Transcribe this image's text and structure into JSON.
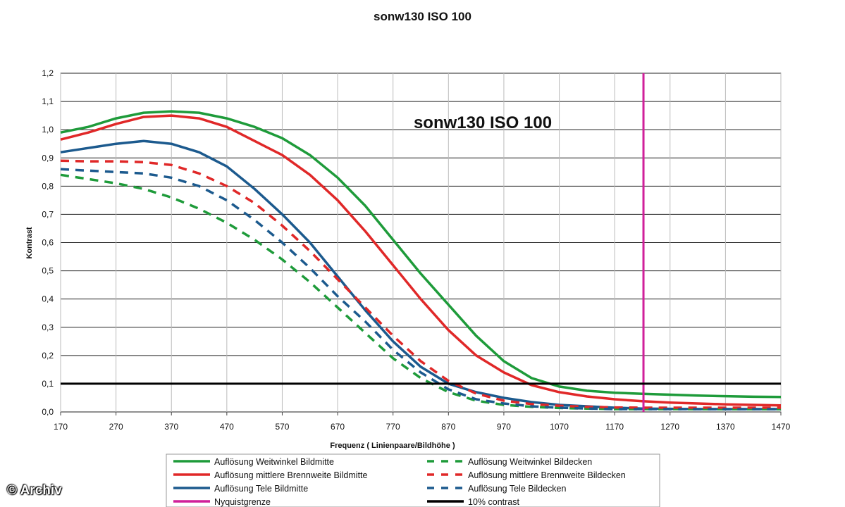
{
  "watermark": "© Archiv",
  "chart_data": {
    "type": "line",
    "title": "sonw130 ISO 100",
    "inner_title": "sonw130 ISO 100",
    "xlabel": "Frequenz ( Linienpaare/Bildhöhe )",
    "ylabel": "Kontrast",
    "xlim": [
      170,
      1470
    ],
    "ylim": [
      0,
      1.2
    ],
    "x_ticks": [
      "170",
      "270",
      "370",
      "470",
      "570",
      "670",
      "770",
      "870",
      "970",
      "1070",
      "1170",
      "1270",
      "1370",
      "1470"
    ],
    "y_ticks": [
      "0,0",
      "0,1",
      "0,2",
      "0,3",
      "0,4",
      "0,5",
      "0,6",
      "0,7",
      "0,8",
      "0,9",
      "1,0",
      "1,1",
      "1,2"
    ],
    "grid": true,
    "legend_position": "bottom",
    "series": [
      {
        "name": "Auflösung Weitwinkel Bildmitte",
        "color": "#1e9b3a",
        "style": "solid",
        "x": [
          170,
          220,
          270,
          320,
          370,
          420,
          470,
          520,
          570,
          620,
          670,
          720,
          770,
          820,
          870,
          920,
          970,
          1020,
          1070,
          1120,
          1170,
          1220,
          1270,
          1320,
          1370,
          1420,
          1470
        ],
        "y": [
          0.99,
          1.01,
          1.04,
          1.06,
          1.065,
          1.06,
          1.04,
          1.01,
          0.97,
          0.91,
          0.83,
          0.73,
          0.61,
          0.49,
          0.38,
          0.27,
          0.18,
          0.12,
          0.09,
          0.075,
          0.068,
          0.064,
          0.061,
          0.058,
          0.056,
          0.054,
          0.053
        ]
      },
      {
        "name": "Auflösung mittlere Brennweite Bildmitte",
        "color": "#e02828",
        "style": "solid",
        "x": [
          170,
          220,
          270,
          320,
          370,
          420,
          470,
          520,
          570,
          620,
          670,
          720,
          770,
          820,
          870,
          920,
          970,
          1020,
          1070,
          1120,
          1170,
          1220,
          1270,
          1320,
          1370,
          1420,
          1470
        ],
        "y": [
          0.965,
          0.99,
          1.02,
          1.045,
          1.05,
          1.04,
          1.01,
          0.96,
          0.91,
          0.84,
          0.75,
          0.64,
          0.52,
          0.4,
          0.29,
          0.2,
          0.14,
          0.095,
          0.07,
          0.055,
          0.045,
          0.038,
          0.033,
          0.03,
          0.027,
          0.025,
          0.023
        ]
      },
      {
        "name": "Auflösung Tele Bildmitte",
        "color": "#1c5a8e",
        "style": "solid",
        "x": [
          170,
          220,
          270,
          320,
          370,
          420,
          470,
          520,
          570,
          620,
          670,
          720,
          770,
          820,
          870,
          920,
          970,
          1020,
          1070,
          1120,
          1170,
          1220,
          1270,
          1320,
          1370,
          1420,
          1470
        ],
        "y": [
          0.92,
          0.935,
          0.95,
          0.96,
          0.95,
          0.92,
          0.87,
          0.79,
          0.7,
          0.6,
          0.48,
          0.36,
          0.25,
          0.16,
          0.1,
          0.07,
          0.05,
          0.035,
          0.025,
          0.02,
          0.015,
          0.012,
          0.011,
          0.01,
          0.01,
          0.01,
          0.01
        ]
      },
      {
        "name": "Auflösung Weitwinkel Bildecken",
        "color": "#1e9b3a",
        "style": "dashed",
        "x": [
          170,
          220,
          270,
          320,
          370,
          420,
          470,
          520,
          570,
          620,
          670,
          720,
          770,
          820,
          870,
          920,
          970,
          1020,
          1070,
          1120,
          1170,
          1220,
          1270,
          1320,
          1370,
          1420,
          1470
        ],
        "y": [
          0.84,
          0.825,
          0.81,
          0.79,
          0.76,
          0.72,
          0.67,
          0.61,
          0.54,
          0.46,
          0.37,
          0.28,
          0.19,
          0.12,
          0.07,
          0.04,
          0.025,
          0.018,
          0.014,
          0.012,
          0.01,
          0.01,
          0.01,
          0.01,
          0.01,
          0.01,
          0.01
        ]
      },
      {
        "name": "Auflösung mittlere Brennweite Bildecken",
        "color": "#e02828",
        "style": "dashed",
        "x": [
          170,
          220,
          270,
          320,
          370,
          420,
          470,
          520,
          570,
          620,
          670,
          720,
          770,
          820,
          870,
          920,
          970,
          1020,
          1070,
          1120,
          1170,
          1220,
          1270,
          1320,
          1370,
          1420,
          1470
        ],
        "y": [
          0.89,
          0.888,
          0.888,
          0.885,
          0.875,
          0.845,
          0.8,
          0.74,
          0.66,
          0.57,
          0.47,
          0.37,
          0.27,
          0.18,
          0.11,
          0.065,
          0.04,
          0.028,
          0.022,
          0.018,
          0.016,
          0.015,
          0.015,
          0.015,
          0.015,
          0.015,
          0.015
        ]
      },
      {
        "name": "Auflösung Tele Bildecken",
        "color": "#1c5a8e",
        "style": "dashed",
        "x": [
          170,
          220,
          270,
          320,
          370,
          420,
          470,
          520,
          570,
          620,
          670,
          720,
          770,
          820,
          870,
          920,
          970,
          1020,
          1070,
          1120,
          1170,
          1220,
          1270,
          1320,
          1370,
          1420,
          1470
        ],
        "y": [
          0.86,
          0.855,
          0.85,
          0.845,
          0.83,
          0.8,
          0.75,
          0.68,
          0.6,
          0.51,
          0.41,
          0.32,
          0.22,
          0.14,
          0.08,
          0.045,
          0.03,
          0.02,
          0.015,
          0.012,
          0.01,
          0.01,
          0.01,
          0.01,
          0.01,
          0.01,
          0.01
        ]
      },
      {
        "name": "Nyquistgrenze",
        "color": "#d0209a",
        "style": "solid",
        "vertical_x": 1222
      },
      {
        "name": "10% contrast",
        "color": "#000000",
        "style": "solid",
        "horizontal_y": 0.1
      }
    ],
    "legend_layout": [
      [
        "Auflösung Weitwinkel Bildmitte",
        "Auflösung Weitwinkel Bildecken"
      ],
      [
        "Auflösung mittlere Brennweite Bildmitte",
        "Auflösung mittlere Brennweite Bildecken"
      ],
      [
        "Auflösung Tele Bildmitte",
        "Auflösung Tele Bildecken"
      ],
      [
        "Nyquistgrenze",
        "10% contrast"
      ]
    ]
  }
}
